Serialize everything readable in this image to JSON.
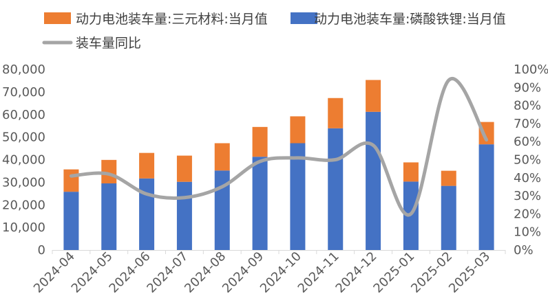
{
  "chart_data": {
    "type": "bar",
    "stacked": true,
    "title": "",
    "xlabel": "",
    "ylabel": "",
    "categories": [
      "2024-04",
      "2024-05",
      "2024-06",
      "2024-07",
      "2024-08",
      "2024-09",
      "2024-10",
      "2024-11",
      "2024-12",
      "2025-01",
      "2025-02",
      "2025-03"
    ],
    "series": [
      {
        "name": "动力电池装车量:磷酸铁锂:当月值",
        "kind": "bar",
        "axis": "left",
        "color": "#4472C4",
        "values": [
          25800,
          29500,
          31700,
          30200,
          35200,
          41300,
          47300,
          53900,
          61200,
          30300,
          28400,
          46800
        ]
      },
      {
        "name": "动力电池装车量:三元材料:当月值",
        "kind": "bar",
        "axis": "left",
        "color": "#ED7D31",
        "values": [
          9900,
          10400,
          11300,
          11600,
          12100,
          13200,
          11900,
          13400,
          14100,
          8500,
          6700,
          9900
        ]
      },
      {
        "name": "装车量同比",
        "kind": "line",
        "axis": "right",
        "color": "#A5A5A5",
        "values": [
          0.41,
          0.42,
          0.31,
          0.29,
          0.35,
          0.49,
          0.51,
          0.5,
          0.58,
          0.2,
          0.94,
          0.61
        ]
      }
    ],
    "left_axis": {
      "min": 0,
      "max": 80000,
      "step": 10000,
      "tick_labels": [
        "0",
        "10,000",
        "20,000",
        "30,000",
        "40,000",
        "50,000",
        "60,000",
        "70,000",
        "80,000"
      ]
    },
    "right_axis": {
      "min": 0,
      "max": 1.0,
      "step": 0.1,
      "tick_labels": [
        "0%",
        "10%",
        "20%",
        "30%",
        "40%",
        "50%",
        "60%",
        "70%",
        "80%",
        "90%",
        "100%"
      ]
    },
    "legend": {
      "placement": "top-left",
      "items": [
        {
          "label": "动力电池装车量:三元材料:当月值",
          "color": "#ED7D31",
          "shape": "rect"
        },
        {
          "label": "动力电池装车量:磷酸铁锂:当月值",
          "color": "#4472C4",
          "shape": "rect"
        },
        {
          "label": "装车量同比",
          "color": "#A5A5A5",
          "shape": "line"
        }
      ]
    },
    "grid": false
  }
}
